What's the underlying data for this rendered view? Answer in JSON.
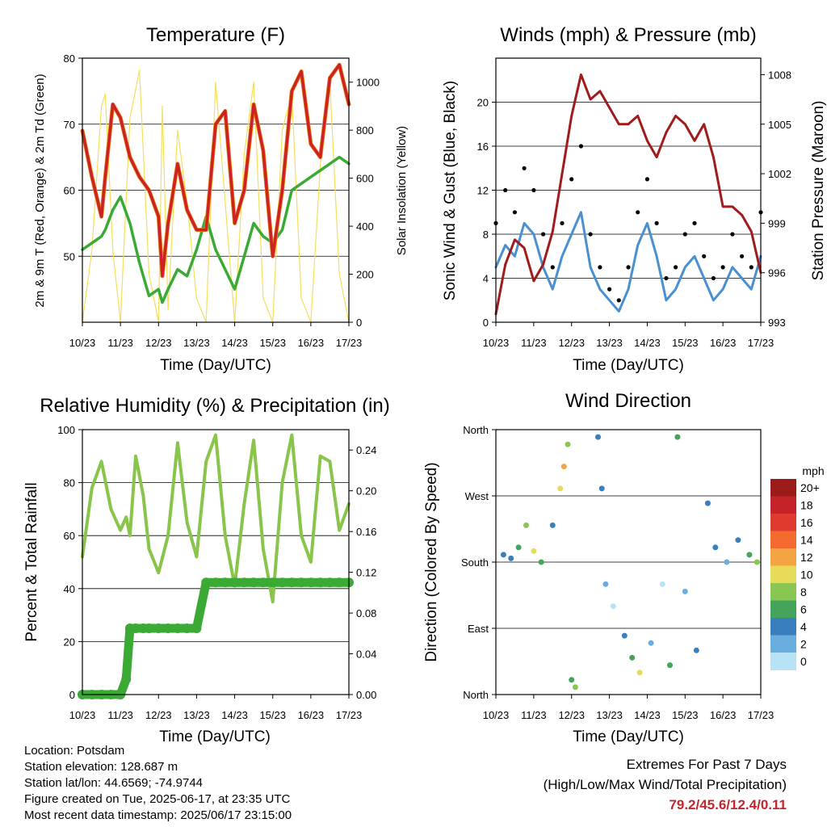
{
  "chart_data": [
    {
      "type": "line",
      "title": "Temperature (F)",
      "xlabel": "Time (Day/UTC)",
      "ylabel": "2m & 9m T (Red, Orange) & 2m Td (Green)",
      "y2label": "Solar Insolation (Yellow)",
      "ylim": [
        40,
        80
      ],
      "y2lim": [
        0,
        1100
      ],
      "yticks": [
        50,
        60,
        70,
        80
      ],
      "y2ticks": [
        0,
        200,
        400,
        600,
        800,
        1000
      ],
      "x_ticks": [
        "10/23",
        "11/23",
        "12/23",
        "13/23",
        "14/23",
        "15/23",
        "16/23",
        "17/23"
      ],
      "grid": true,
      "x": [
        0,
        0.25,
        0.5,
        0.6,
        0.8,
        1.0,
        1.25,
        1.5,
        1.75,
        2.0,
        2.1,
        2.25,
        2.5,
        2.75,
        3.0,
        3.25,
        3.5,
        3.75,
        4.0,
        4.25,
        4.5,
        4.75,
        5.0,
        5.25,
        5.5,
        5.75,
        6.0,
        6.25,
        6.5,
        6.75,
        7.0
      ],
      "series": [
        {
          "color": "#cc2222",
          "values": [
            69,
            62,
            56,
            62,
            73,
            71,
            65,
            62,
            60,
            56,
            47,
            55,
            64,
            57,
            54,
            54,
            70,
            72,
            55,
            60,
            73,
            66,
            50,
            60,
            75,
            78,
            67,
            65,
            77,
            79,
            73
          ]
        },
        {
          "color": "#f08a1e",
          "values": [
            69,
            62,
            56,
            62,
            73,
            71,
            65,
            62,
            60,
            56,
            47,
            55,
            64,
            57,
            54,
            54,
            70,
            72,
            55,
            60,
            73,
            66,
            50,
            60,
            75,
            78,
            67,
            65,
            77,
            79,
            73
          ]
        },
        {
          "color": "#3aaa35",
          "values": [
            51,
            52,
            53,
            54,
            57,
            59,
            55,
            49,
            44,
            45,
            43,
            45,
            48,
            47,
            51,
            56,
            51,
            48,
            45,
            50,
            55,
            53,
            52,
            54,
            60,
            61,
            62,
            63,
            64,
            65,
            64
          ]
        },
        {
          "color": "#f5de5a",
          "values": [
            0,
            300,
            900,
            950,
            300,
            0,
            850,
            1050,
            200,
            0,
            900,
            50,
            800,
            500,
            100,
            0,
            1000,
            500,
            0,
            700,
            1000,
            100,
            0,
            800,
            950,
            100,
            0,
            650,
            1000,
            200,
            0
          ]
        }
      ]
    },
    {
      "type": "line",
      "title": "Winds (mph) & Pressure (mb)",
      "xlabel": "Time (Day/UTC)",
      "ylabel": "Sonic Wind & Gust (Blue, Black)",
      "y2label": "Station Pressure (Maroon)",
      "ylim": [
        0,
        24
      ],
      "y2lim": [
        993,
        1009
      ],
      "yticks": [
        0,
        4,
        8,
        12,
        16,
        20
      ],
      "y2ticks": [
        993,
        996,
        999,
        1002,
        1005,
        1008
      ],
      "x_ticks": [
        "10/23",
        "11/23",
        "12/23",
        "13/23",
        "14/23",
        "15/23",
        "16/23",
        "17/23"
      ],
      "grid": true,
      "x": [
        0,
        0.25,
        0.5,
        0.75,
        1.0,
        1.25,
        1.5,
        1.75,
        2.0,
        2.25,
        2.5,
        2.75,
        3.0,
        3.25,
        3.5,
        3.75,
        4.0,
        4.25,
        4.5,
        4.75,
        5.0,
        5.25,
        5.5,
        5.75,
        6.0,
        6.25,
        6.5,
        6.75,
        7.0
      ],
      "series": [
        {
          "color": "#4a90d0",
          "values": [
            5,
            7,
            6,
            9,
            8,
            5,
            3,
            6,
            8,
            10,
            5,
            3,
            2,
            1,
            3,
            7,
            9,
            6,
            2,
            3,
            5,
            6,
            4,
            2,
            3,
            5,
            4,
            3,
            6
          ]
        },
        {
          "color": "#000000",
          "values": [
            9,
            12,
            10,
            14,
            12,
            8,
            5,
            9,
            13,
            16,
            8,
            5,
            3,
            2,
            5,
            10,
            13,
            9,
            4,
            5,
            8,
            9,
            6,
            4,
            5,
            8,
            6,
            5,
            10
          ]
        },
        {
          "color": "#a01c1c",
          "values": [
            993.5,
            996.5,
            998,
            997.5,
            995.5,
            996.5,
            998.5,
            1002,
            1005.5,
            1008,
            1006.5,
            1007,
            1006,
            1005,
            1005,
            1005.5,
            1004,
            1003,
            1004.5,
            1005.5,
            1005,
            1004,
            1005,
            1003,
            1000,
            1000,
            999.5,
            998.5,
            996
          ]
        }
      ]
    },
    {
      "type": "line",
      "title": "Relative Humidity (%) & Precipitation (in)",
      "xlabel": "Time (Day/UTC)",
      "ylabel": "Percent & Total Rainfall",
      "ylim": [
        0,
        100
      ],
      "y2lim": [
        0,
        0.26
      ],
      "yticks": [
        0,
        20,
        40,
        60,
        80,
        100
      ],
      "y2ticks": [
        0.0,
        0.04,
        0.08,
        0.12,
        0.16,
        0.2,
        0.24
      ],
      "y2ticklabels": [
        "0.00",
        "0.04",
        "0.08",
        "0.12",
        "0.16",
        "0.20",
        "0.24"
      ],
      "x_ticks": [
        "10/23",
        "11/23",
        "12/23",
        "13/23",
        "14/23",
        "15/23",
        "16/23",
        "17/23"
      ],
      "grid": true,
      "x": [
        0,
        0.25,
        0.5,
        0.75,
        1.0,
        1.15,
        1.25,
        1.4,
        1.6,
        1.75,
        2.0,
        2.25,
        2.5,
        2.75,
        3.0,
        3.25,
        3.5,
        3.75,
        4.0,
        4.25,
        4.5,
        4.75,
        5.0,
        5.25,
        5.5,
        5.75,
        6.0,
        6.25,
        6.5,
        6.75,
        7.0
      ],
      "series": [
        {
          "name": "rh",
          "color": "#88c54a",
          "values": [
            52,
            78,
            88,
            70,
            62,
            67,
            60,
            90,
            75,
            55,
            46,
            60,
            95,
            65,
            52,
            88,
            98,
            60,
            41,
            72,
            96,
            55,
            35,
            80,
            98,
            60,
            50,
            90,
            88,
            62,
            72
          ]
        },
        {
          "name": "precip",
          "color": "#3aaa35",
          "values": [
            0,
            0,
            0,
            0,
            0,
            0.015,
            0.065,
            0.065,
            0.065,
            0.065,
            0.065,
            0.065,
            0.065,
            0.065,
            0.065,
            0.11,
            0.11,
            0.11,
            0.11,
            0.11,
            0.11,
            0.11,
            0.11,
            0.11,
            0.11,
            0.11,
            0.11,
            0.11,
            0.11,
            0.11,
            0.11
          ]
        }
      ]
    },
    {
      "type": "scatter",
      "title": "Wind Direction",
      "xlabel": "Time (Day/UTC)",
      "ylabel": "Direction (Colored By Speed)",
      "ylim": [
        0,
        360
      ],
      "ytick_values": [
        0,
        90,
        180,
        270,
        360
      ],
      "ytick_labels": [
        "North",
        "East",
        "South",
        "West",
        "North"
      ],
      "x_ticks": [
        "10/23",
        "11/23",
        "12/23",
        "13/23",
        "14/23",
        "15/23",
        "16/23",
        "17/23"
      ],
      "grid": true,
      "colorbar": {
        "title": "mph",
        "labels": [
          "20+",
          "18",
          "16",
          "14",
          "12",
          "10",
          "8",
          "6",
          "4",
          "2",
          "0"
        ],
        "colors": [
          "#9b1b1b",
          "#c4232a",
          "#e0392e",
          "#f26a2e",
          "#f5a443",
          "#e6dc5a",
          "#8ac652",
          "#44a45c",
          "#3a7fbd",
          "#6aaee0",
          "#b8e2f5"
        ]
      },
      "points": [
        {
          "x": 0.2,
          "y": 190,
          "s": 4
        },
        {
          "x": 0.4,
          "y": 185,
          "s": 4
        },
        {
          "x": 0.6,
          "y": 200,
          "s": 6
        },
        {
          "x": 0.8,
          "y": 230,
          "s": 8
        },
        {
          "x": 1.0,
          "y": 195,
          "s": 10
        },
        {
          "x": 1.2,
          "y": 180,
          "s": 6
        },
        {
          "x": 1.5,
          "y": 230,
          "s": 4
        },
        {
          "x": 1.7,
          "y": 280,
          "s": 10
        },
        {
          "x": 1.8,
          "y": 310,
          "s": 12
        },
        {
          "x": 1.9,
          "y": 340,
          "s": 8
        },
        {
          "x": 2.0,
          "y": 20,
          "s": 6
        },
        {
          "x": 2.1,
          "y": 10,
          "s": 8
        },
        {
          "x": 2.7,
          "y": 350,
          "s": 4
        },
        {
          "x": 2.8,
          "y": 280,
          "s": 4
        },
        {
          "x": 2.9,
          "y": 150,
          "s": 2
        },
        {
          "x": 3.1,
          "y": 120,
          "s": 0
        },
        {
          "x": 3.4,
          "y": 80,
          "s": 4
        },
        {
          "x": 3.6,
          "y": 50,
          "s": 6
        },
        {
          "x": 3.8,
          "y": 30,
          "s": 10
        },
        {
          "x": 4.1,
          "y": 70,
          "s": 2
        },
        {
          "x": 4.4,
          "y": 150,
          "s": 0
        },
        {
          "x": 4.6,
          "y": 40,
          "s": 6
        },
        {
          "x": 4.8,
          "y": 350,
          "s": 6
        },
        {
          "x": 5.0,
          "y": 140,
          "s": 2
        },
        {
          "x": 5.3,
          "y": 60,
          "s": 4
        },
        {
          "x": 5.6,
          "y": 260,
          "s": 4
        },
        {
          "x": 5.8,
          "y": 200,
          "s": 4
        },
        {
          "x": 6.1,
          "y": 180,
          "s": 2
        },
        {
          "x": 6.4,
          "y": 210,
          "s": 4
        },
        {
          "x": 6.7,
          "y": 190,
          "s": 6
        },
        {
          "x": 6.9,
          "y": 180,
          "s": 8
        }
      ]
    }
  ],
  "info": {
    "location": "Location: Potsdam",
    "elevation": "Station elevation: 128.687 m",
    "latlon": "Station lat/lon: 44.6569; -74.9744",
    "created": "Figure created on Tue, 2025-06-17, at 23:35 UTC",
    "recent": "Most recent data timestamp: 2025/06/17 23:15:00"
  },
  "extremes": {
    "title": "Extremes For Past 7 Days",
    "subtitle": "(High/Low/Max Wind/Total Precipitation)",
    "values": "79.2/45.6/12.4/0.11"
  }
}
